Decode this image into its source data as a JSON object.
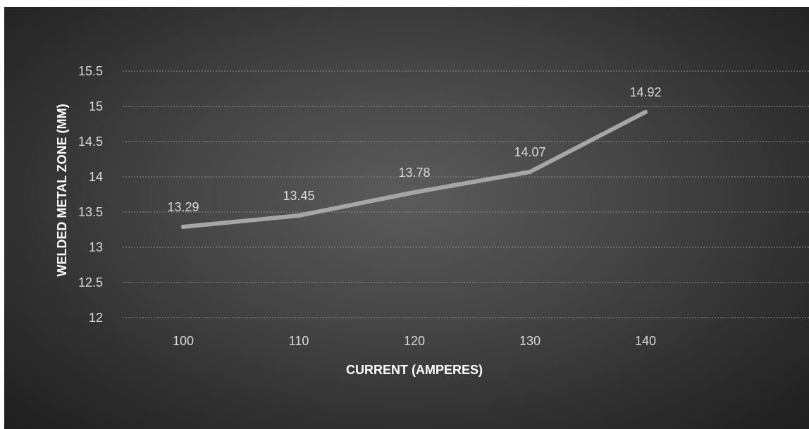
{
  "chart_data": {
    "type": "line",
    "title": "",
    "xlabel": "CURRENT (AMPERES)",
    "ylabel": "WELDED METAL ZONE  (MM)",
    "categories": [
      "100",
      "110",
      "120",
      "130",
      "140"
    ],
    "series": [
      {
        "values": [
          13.29,
          13.45,
          13.78,
          14.07,
          14.92
        ],
        "data_labels": [
          "13.29",
          "13.45",
          "13.78",
          "14.07",
          "14.92"
        ]
      }
    ],
    "ylim": [
      12,
      15.5
    ],
    "yticks": [
      "12",
      "12.5",
      "13",
      "13.5",
      "14",
      "14.5",
      "15",
      "15.5"
    ],
    "grid": true,
    "legend": "none",
    "colors": {
      "line": "#a6a6a6",
      "text": "#d9d9d9",
      "title_text": "#ffffff",
      "grid": "#8a8a8a"
    }
  }
}
